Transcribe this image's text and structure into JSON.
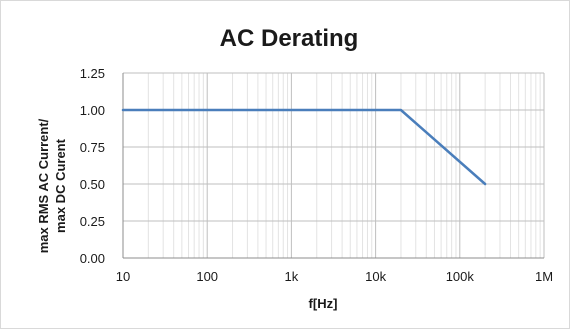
{
  "chart_data": {
    "type": "line",
    "title": "AC Derating",
    "xlabel": "f[Hz]",
    "ylabel_lines": [
      "max RMS AC Current/",
      "max DC Curent"
    ],
    "x_scale": "log",
    "xlim": [
      10,
      1000000
    ],
    "ylim": [
      0,
      1.25
    ],
    "x_ticks": [
      {
        "value": 10,
        "label": "10"
      },
      {
        "value": 100,
        "label": "100"
      },
      {
        "value": 1000,
        "label": "1k"
      },
      {
        "value": 10000,
        "label": "10k"
      },
      {
        "value": 100000,
        "label": "100k"
      },
      {
        "value": 1000000,
        "label": "1M"
      }
    ],
    "y_ticks": [
      {
        "value": 0,
        "label": "0.00"
      },
      {
        "value": 0.25,
        "label": "0.25"
      },
      {
        "value": 0.5,
        "label": "0.50"
      },
      {
        "value": 0.75,
        "label": "0.75"
      },
      {
        "value": 1.0,
        "label": "1.00"
      },
      {
        "value": 1.25,
        "label": "1.25"
      }
    ],
    "grid": true,
    "legend": "none",
    "series": [
      {
        "color": "#4a7ebb",
        "points": [
          {
            "x": 10,
            "y": 1.0
          },
          {
            "x": 20000,
            "y": 1.0
          },
          {
            "x": 200000,
            "y": 0.5
          }
        ]
      }
    ]
  }
}
